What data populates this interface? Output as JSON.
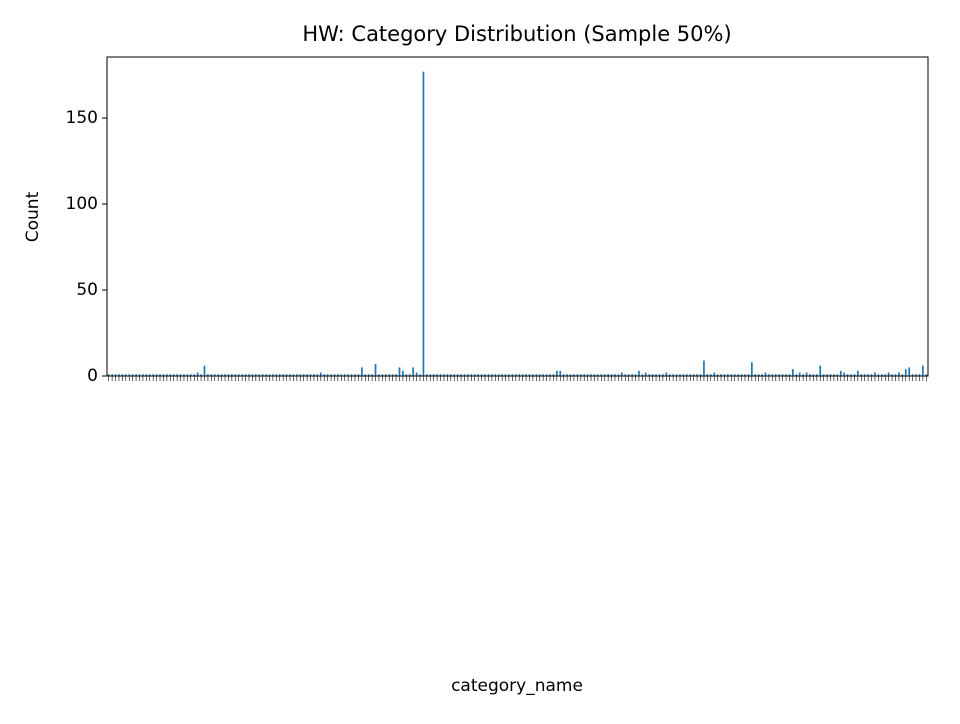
{
  "chart_data": {
    "type": "bar",
    "title": "HW: Category Distribution (Sample 50%)",
    "xlabel": "category_name",
    "ylabel": "Count",
    "color": "#1f77b4",
    "categories": [
      null,
      null,
      null,
      null,
      null,
      null,
      null,
      null,
      null,
      null,
      null,
      null,
      null,
      null,
      null,
      null,
      null,
      null,
      null,
      null,
      null,
      null,
      null,
      null,
      null,
      null,
      null,
      null,
      null,
      null,
      null,
      null,
      null,
      null,
      null,
      null,
      null,
      null,
      null,
      null,
      null,
      null,
      null,
      null,
      null,
      null,
      null,
      null,
      null,
      null,
      null,
      null,
      null,
      null,
      null,
      null,
      null,
      null,
      null,
      null,
      null,
      null,
      null,
      null,
      null,
      null,
      null,
      null,
      null,
      null,
      null,
      null,
      null,
      null,
      null,
      null,
      null,
      null,
      null,
      null,
      null,
      null,
      null,
      null,
      null,
      null,
      null,
      null,
      null,
      null,
      null,
      null,
      null,
      null,
      null,
      null,
      null,
      null,
      null,
      null,
      null,
      null,
      null,
      null,
      null,
      null,
      null,
      null,
      null,
      null,
      null,
      null,
      null,
      null,
      null,
      null,
      null,
      null,
      null,
      null,
      null,
      null,
      null,
      null,
      null,
      null,
      null,
      null,
      null,
      null,
      null,
      null,
      null,
      null,
      null,
      null,
      null,
      null,
      null,
      null,
      null,
      null,
      null,
      null,
      null,
      null,
      null,
      null,
      null,
      null,
      null,
      null,
      null,
      null,
      null,
      null,
      null,
      null,
      null,
      null,
      null,
      null,
      null,
      null,
      null,
      null,
      null,
      null,
      null,
      null,
      null,
      null,
      null,
      null,
      null,
      null,
      null,
      null,
      null,
      null,
      null,
      null,
      null,
      null,
      null,
      null,
      null,
      null,
      null,
      null,
      null,
      null,
      null,
      null,
      null,
      null,
      null,
      null,
      null,
      null,
      null,
      null,
      null,
      null,
      null,
      null,
      null,
      null,
      null,
      null,
      null,
      null,
      null,
      null,
      null,
      null,
      null,
      null,
      null,
      null,
      null,
      null,
      null,
      null,
      null,
      null,
      null,
      null,
      null,
      null,
      null,
      null,
      null,
      null,
      null,
      null,
      null,
      null,
      null,
      null
    ],
    "values": [
      1,
      1,
      1,
      1,
      1,
      1,
      1,
      1,
      1,
      1,
      1,
      1,
      1,
      1,
      1,
      1,
      1,
      1,
      1,
      1,
      1,
      1,
      1,
      1,
      1,
      1,
      2,
      1,
      6,
      1,
      1,
      1,
      1,
      1,
      1,
      1,
      1,
      1,
      1,
      1,
      1,
      1,
      1,
      1,
      1,
      1,
      1,
      1,
      1,
      1,
      1,
      1,
      1,
      1,
      1,
      1,
      1,
      1,
      1,
      1,
      1,
      1,
      2,
      1,
      1,
      1,
      1,
      1,
      1,
      1,
      1,
      1,
      1,
      1,
      5,
      1,
      1,
      1,
      7,
      1,
      1,
      1,
      1,
      1,
      1,
      5,
      3,
      1,
      1,
      5,
      2,
      1,
      177,
      1,
      1,
      1,
      1,
      1,
      1,
      1,
      1,
      1,
      1,
      1,
      1,
      1,
      1,
      1,
      1,
      1,
      1,
      1,
      1,
      1,
      1,
      1,
      1,
      1,
      1,
      1,
      1,
      1,
      1,
      1,
      1,
      1,
      1,
      1,
      1,
      1,
      1,
      3,
      3,
      1,
      1,
      1,
      1,
      1,
      1,
      1,
      1,
      1,
      1,
      1,
      1,
      1,
      1,
      1,
      1,
      1,
      2,
      1,
      1,
      1,
      1,
      3,
      1,
      2,
      1,
      1,
      1,
      1,
      1,
      2,
      1,
      1,
      1,
      1,
      1,
      1,
      1,
      1,
      1,
      1,
      9,
      1,
      1,
      2,
      1,
      1,
      1,
      1,
      1,
      1,
      1,
      1,
      1,
      1,
      8,
      1,
      1,
      1,
      2,
      1,
      1,
      1,
      1,
      1,
      1,
      1,
      4,
      1,
      2,
      1,
      2,
      1,
      1,
      1,
      6,
      1,
      1,
      1,
      1,
      1,
      3,
      2,
      1,
      1,
      1,
      3,
      1,
      1,
      1,
      1,
      2,
      1,
      1,
      1,
      2,
      1,
      1,
      2,
      1,
      4,
      5,
      1,
      1,
      1,
      6,
      1
    ],
    "ylim": [
      0,
      185.5
    ],
    "yticks": [
      0,
      50,
      100,
      150
    ],
    "grid": false
  }
}
